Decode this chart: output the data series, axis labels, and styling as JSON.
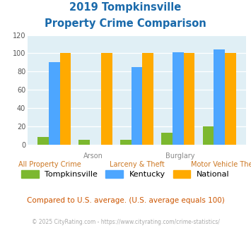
{
  "title_line1": "2019 Tompkinsville",
  "title_line2": "Property Crime Comparison",
  "categories": [
    "All Property Crime",
    "Arson",
    "Larceny & Theft",
    "Burglary",
    "Motor Vehicle Theft"
  ],
  "category_labels_top": [
    "",
    "Arson",
    "",
    "Burglary",
    ""
  ],
  "category_labels_bottom": [
    "All Property Crime",
    "",
    "Larceny & Theft",
    "",
    "Motor Vehicle Theft"
  ],
  "tompkinsville": [
    8,
    5,
    5,
    13,
    20
  ],
  "kentucky": [
    90,
    0,
    85,
    101,
    104
  ],
  "national": [
    100,
    100,
    100,
    100,
    100
  ],
  "colors": {
    "tompkinsville": "#7cb82f",
    "kentucky": "#4da6ff",
    "national": "#ffaa00"
  },
  "ylim": [
    0,
    120
  ],
  "yticks": [
    0,
    20,
    40,
    60,
    80,
    100,
    120
  ],
  "bg_color": "#e0eff5",
  "title_color": "#1a6aab",
  "xlabel_color_top": "#888888",
  "xlabel_color_bottom": "#cc7722",
  "footer_text": "Compared to U.S. average. (U.S. average equals 100)",
  "copyright_text": "© 2025 CityRating.com - https://www.cityrating.com/crime-statistics/",
  "legend_labels": [
    "Tompkinsville",
    "Kentucky",
    "National"
  ]
}
